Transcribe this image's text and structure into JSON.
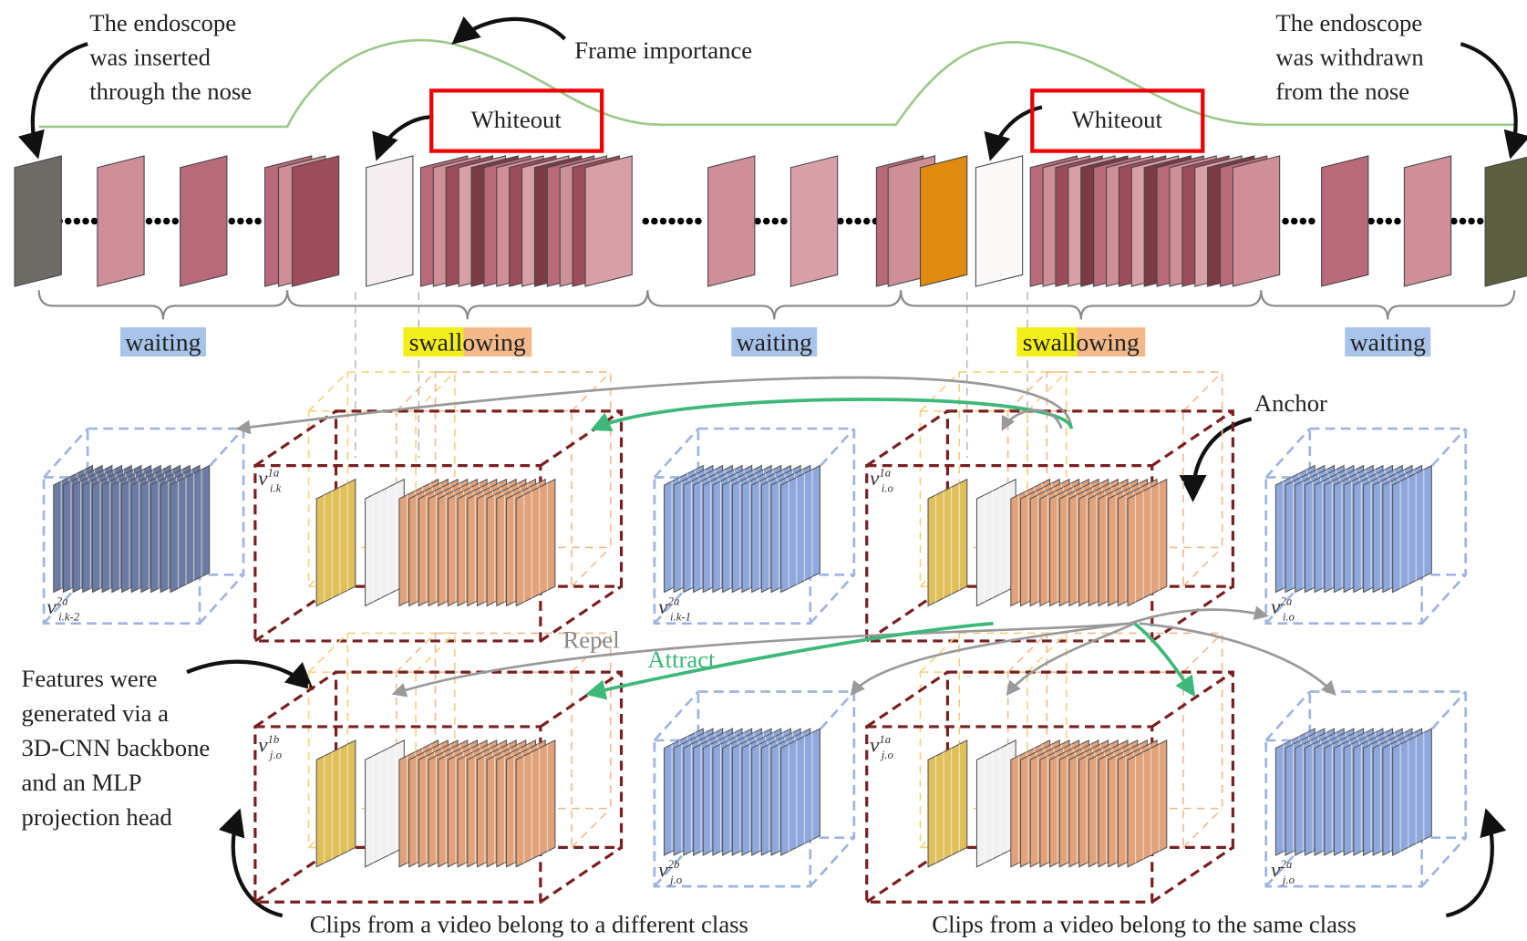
{
  "annotations": {
    "inserted": [
      "The endoscope",
      "was inserted",
      "through the nose"
    ],
    "frame_importance": "Frame importance",
    "withdrawn": [
      "The endoscope",
      "was withdrawn",
      "from the nose"
    ],
    "whiteout": [
      "Whiteout",
      "Whiteout"
    ],
    "anchor": "Anchor",
    "repel": "Repel",
    "attract": "Attract",
    "features_note": [
      "Features were",
      "generated via a",
      "3D-CNN backbone",
      "and an MLP",
      "projection head"
    ],
    "captions": [
      "Clips from a video belong to a different class",
      "Clips from a video belong to the same class"
    ]
  },
  "phases": [
    "waiting",
    "swallowing",
    "waiting",
    "swallowing",
    "waiting"
  ],
  "features": [
    {
      "base": "v",
      "sup": "2a",
      "sub": "i.k-2"
    },
    {
      "base": "v",
      "sup": "1a",
      "sub": "i.k"
    },
    {
      "base": "v",
      "sup": "2a",
      "sub": "i.k-1"
    },
    {
      "base": "v",
      "sup": "1a",
      "sub": "i.o"
    },
    {
      "base": "v",
      "sup": "2a",
      "sub": "i.o"
    },
    {
      "base": "v",
      "sup": "1b",
      "sub": "j.o"
    },
    {
      "base": "v",
      "sup": "2b",
      "sub": "j.o"
    },
    {
      "base": "v",
      "sup": "1a",
      "sub": "j.o"
    },
    {
      "base": "v",
      "sup": "2a",
      "sub": "j.o"
    }
  ]
}
